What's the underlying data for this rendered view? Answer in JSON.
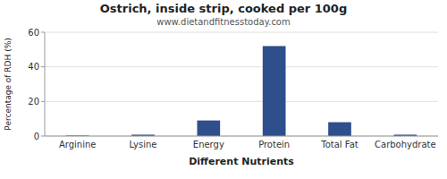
{
  "chart_data": {
    "type": "bar",
    "title": "Ostrich, inside strip, cooked per 100g",
    "subtitle": "www.dietandfitnesstoday.com",
    "xlabel": "Different Nutrients",
    "ylabel": "Percentage of RDH (%)",
    "categories": [
      "Arginine",
      "Lysine",
      "Energy",
      "Protein",
      "Total Fat",
      "Carbohydrate"
    ],
    "values": [
      0.3,
      0.8,
      9.0,
      52.0,
      8.0,
      0.8
    ],
    "color": "#2E4E8C",
    "ylim": [
      0,
      60
    ],
    "yticks": [
      0,
      20,
      40,
      60
    ],
    "grid": true
  }
}
